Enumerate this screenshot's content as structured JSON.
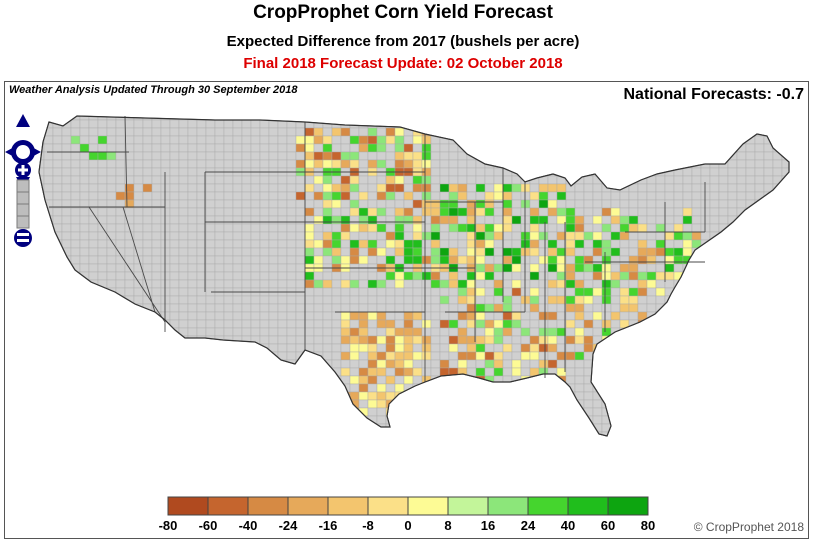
{
  "header": {
    "title": "CropProphet Corn Yield Forecast",
    "subtitle": "Expected Difference from 2017 (bushels per acre)",
    "update_line": "Final 2018 Forecast Update: 02 October 2018",
    "update_color": "#dd0000"
  },
  "map_panel": {
    "weather_note": "Weather Analysis Updated Through 30 September 2018",
    "national_forecast": "National Forecasts: -0.7",
    "copyright": "© CropProphet 2018"
  },
  "navigation": {
    "pan_icon": "pan-arrows-icon",
    "zoom_in_icon": "zoom-in-icon",
    "zoom_out_icon": "zoom-out-icon",
    "color": "#00007f"
  },
  "legend": {
    "ticks": [
      "-80",
      "-60",
      "-40",
      "-24",
      "-16",
      "-8",
      "0",
      "8",
      "16",
      "24",
      "40",
      "60",
      "80"
    ],
    "colors": [
      "#b04a1f",
      "#c5652e",
      "#d68a44",
      "#e6a95a",
      "#f3c56e",
      "#fbe088",
      "#fdfb95",
      "#c3f59a",
      "#8ce67a",
      "#45d52e",
      "#20be1c",
      "#0da510",
      "#077f07"
    ]
  },
  "map_colors": {
    "no_data": "#d0d0d0",
    "county_line": "#a8a8a8",
    "state_line": "#4a4a4a"
  }
}
